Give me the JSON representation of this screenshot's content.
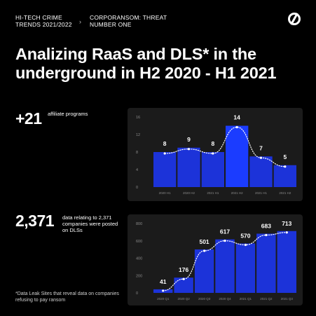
{
  "header": {
    "left_text": "HI-TECH CRIME TRENDS 2021/2022",
    "separator": "›",
    "right_text": "CORPORANSOM: THREAT NUMBER ONE",
    "logo_icon": "slashed-circle-logo"
  },
  "title": "Analizing RaaS and DLS* in the underground in H2 2020 - H1 2021",
  "stat1": {
    "value": "+21",
    "label": "affiliate programs"
  },
  "stat2": {
    "value": "2,371",
    "label": "data relating to 2,371 companies were posted on DLSs"
  },
  "footnote": "*Data Leak Sites that reveal data on companies refusing to pay ransom",
  "colors": {
    "bar": "#1c33d9",
    "bar_highlight": "#1b3cff",
    "panel": "#1b1b1b",
    "text": "#ffffff",
    "muted": "#8a8a8a"
  },
  "chart_data": [
    {
      "type": "bar",
      "categories": [
        "2020 H1",
        "2020 H2",
        "2021 H1",
        "2021 H2",
        "2021 H1",
        "2021 H2"
      ],
      "values": [
        8,
        9,
        8,
        14,
        7,
        5
      ],
      "ylim": [
        0,
        16
      ],
      "yticks": [
        0,
        4,
        8,
        12,
        16
      ],
      "highlight_index": 3,
      "trend_line": "dotted",
      "grid": false
    },
    {
      "type": "bar",
      "categories": [
        "2020 Q1",
        "2020 Q2",
        "2020 Q3",
        "2020 Q4",
        "2021 Q1",
        "2021 Q2",
        "2021 Q3"
      ],
      "values": [
        41,
        176,
        501,
        617,
        570,
        683,
        713
      ],
      "ylim": [
        0,
        800
      ],
      "yticks": [
        0,
        200,
        400,
        600,
        800
      ],
      "trend_line": "dotted",
      "grid": false
    }
  ]
}
